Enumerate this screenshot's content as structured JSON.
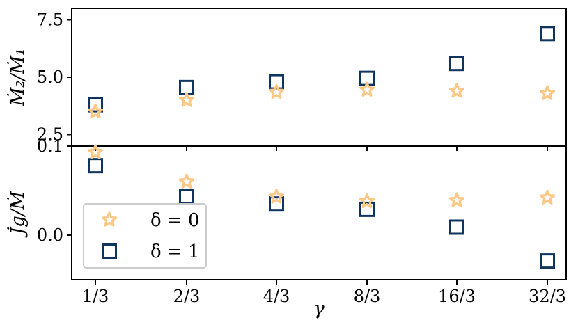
{
  "colors": {
    "star": "#fdc785",
    "square": "#0f3460"
  },
  "chart_data": [
    {
      "type": "scatter",
      "panel": "top",
      "ylabel": "Ṁ₂/Ṁ₁",
      "ylim": [
        2.0,
        8.0
      ],
      "yticks": [
        2.5,
        5.0,
        7.5
      ],
      "ytick_labels": [
        "2.5",
        "5.0",
        "7.5"
      ],
      "x": [
        "1/3",
        "2/3",
        "4/3",
        "8/3",
        "16/3",
        "32/3"
      ],
      "series": [
        {
          "name": "δ = 0",
          "marker": "star",
          "values": [
            3.5,
            4.0,
            4.35,
            4.45,
            4.4,
            4.3
          ]
        },
        {
          "name": "δ = 1",
          "marker": "square",
          "values": [
            3.8,
            4.55,
            4.8,
            4.95,
            5.6,
            6.9
          ]
        }
      ]
    },
    {
      "type": "scatter",
      "panel": "bottom",
      "ylabel": "J̇g/Ṁ",
      "ylim": [
        -0.05,
        0.1
      ],
      "yticks": [
        0.0,
        0.1
      ],
      "ytick_labels": [
        "0.0",
        "0.1"
      ],
      "xlabel": "γ",
      "x": [
        "1/3",
        "2/3",
        "4/3",
        "8/3",
        "16/3",
        "32/3"
      ],
      "series": [
        {
          "name": "δ = 0",
          "marker": "star",
          "values": [
            0.093,
            0.06,
            0.043,
            0.038,
            0.039,
            0.042
          ]
        },
        {
          "name": "δ = 1",
          "marker": "square",
          "values": [
            0.078,
            0.043,
            0.035,
            0.029,
            0.009,
            -0.029
          ]
        }
      ],
      "legend": {
        "placement": "lower-left",
        "entries": [
          {
            "label": "δ = 0",
            "marker": "star"
          },
          {
            "label": "δ = 1",
            "marker": "square"
          }
        ]
      }
    }
  ]
}
